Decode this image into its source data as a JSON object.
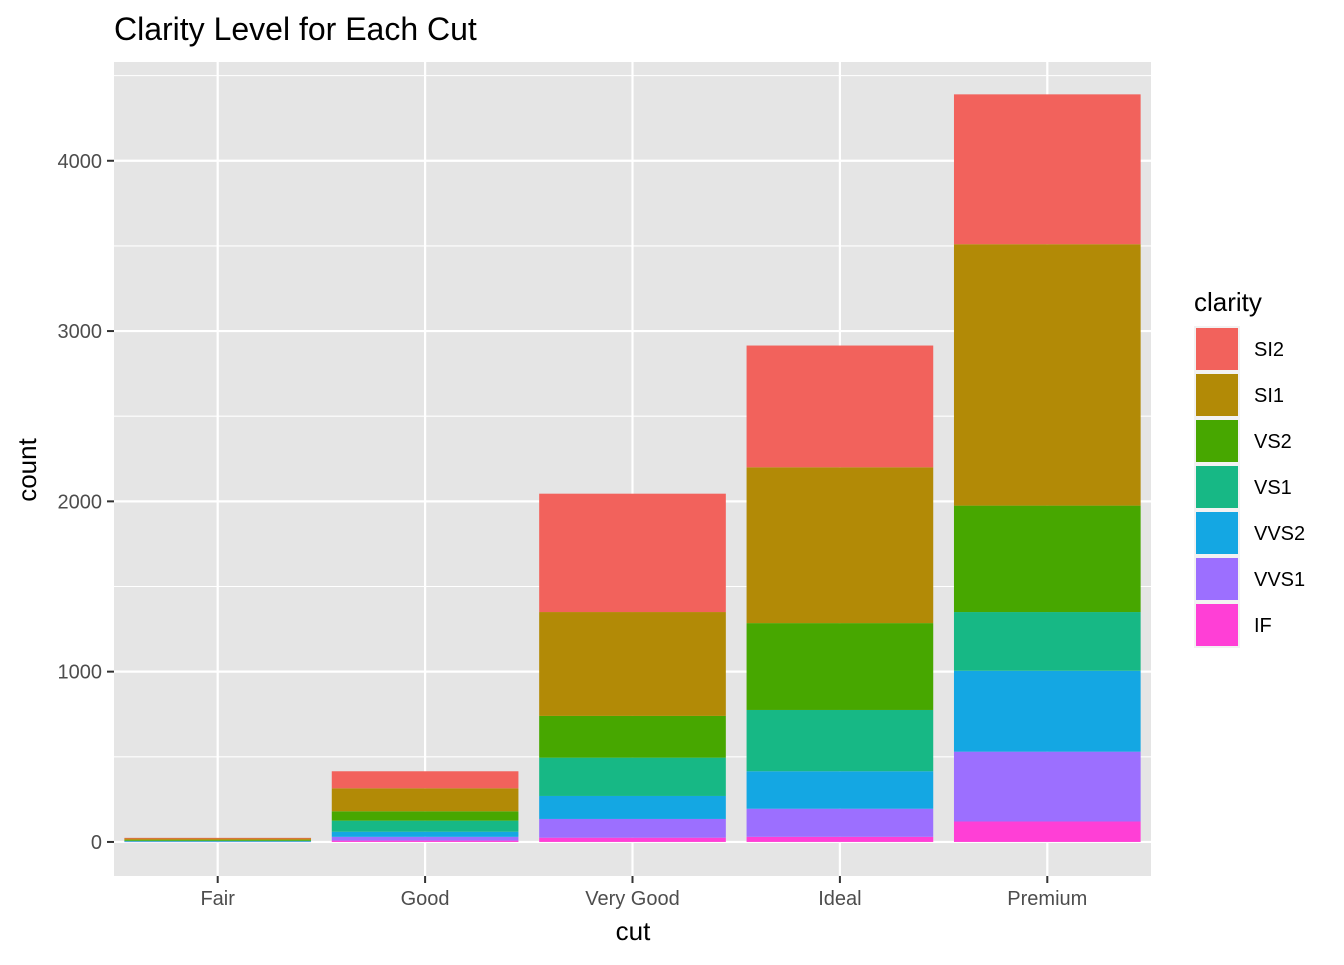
{
  "chart_data": {
    "type": "bar",
    "stacked": true,
    "title": "Clarity Level for Each Cut",
    "xlabel": "cut",
    "ylabel": "count",
    "categories": [
      "Fair",
      "Good",
      "Very Good",
      "Ideal",
      "Premium"
    ],
    "ylim": [
      -200,
      4580
    ],
    "yticks": [
      0,
      1000,
      2000,
      3000,
      4000
    ],
    "grid": true,
    "legend": {
      "title": "clarity",
      "position": "right"
    },
    "series": [
      {
        "name": "IF",
        "color": "#FF3FD6",
        "values": [
          0,
          8,
          25,
          30,
          120
        ]
      },
      {
        "name": "VVS1",
        "color": "#9C6FFF",
        "values": [
          2,
          22,
          110,
          165,
          410
        ]
      },
      {
        "name": "VVS2",
        "color": "#14A7E3",
        "values": [
          2,
          30,
          135,
          220,
          475
        ]
      },
      {
        "name": "VS1",
        "color": "#17B885",
        "values": [
          3,
          65,
          225,
          360,
          345
        ]
      },
      {
        "name": "VS2",
        "color": "#47A700",
        "values": [
          5,
          55,
          245,
          510,
          625
        ]
      },
      {
        "name": "SI1",
        "color": "#B28A06",
        "values": [
          8,
          135,
          610,
          915,
          1535
        ]
      },
      {
        "name": "SI2",
        "color": "#F2625C",
        "values": [
          4,
          100,
          695,
          715,
          880
        ]
      }
    ],
    "legend_order": [
      "SI2",
      "SI1",
      "VS2",
      "VS1",
      "VVS2",
      "VVS1",
      "IF"
    ],
    "colors": {
      "panel": "#E5E5E5",
      "grid": "#FFFFFF",
      "background": "#FFFFFF"
    }
  }
}
